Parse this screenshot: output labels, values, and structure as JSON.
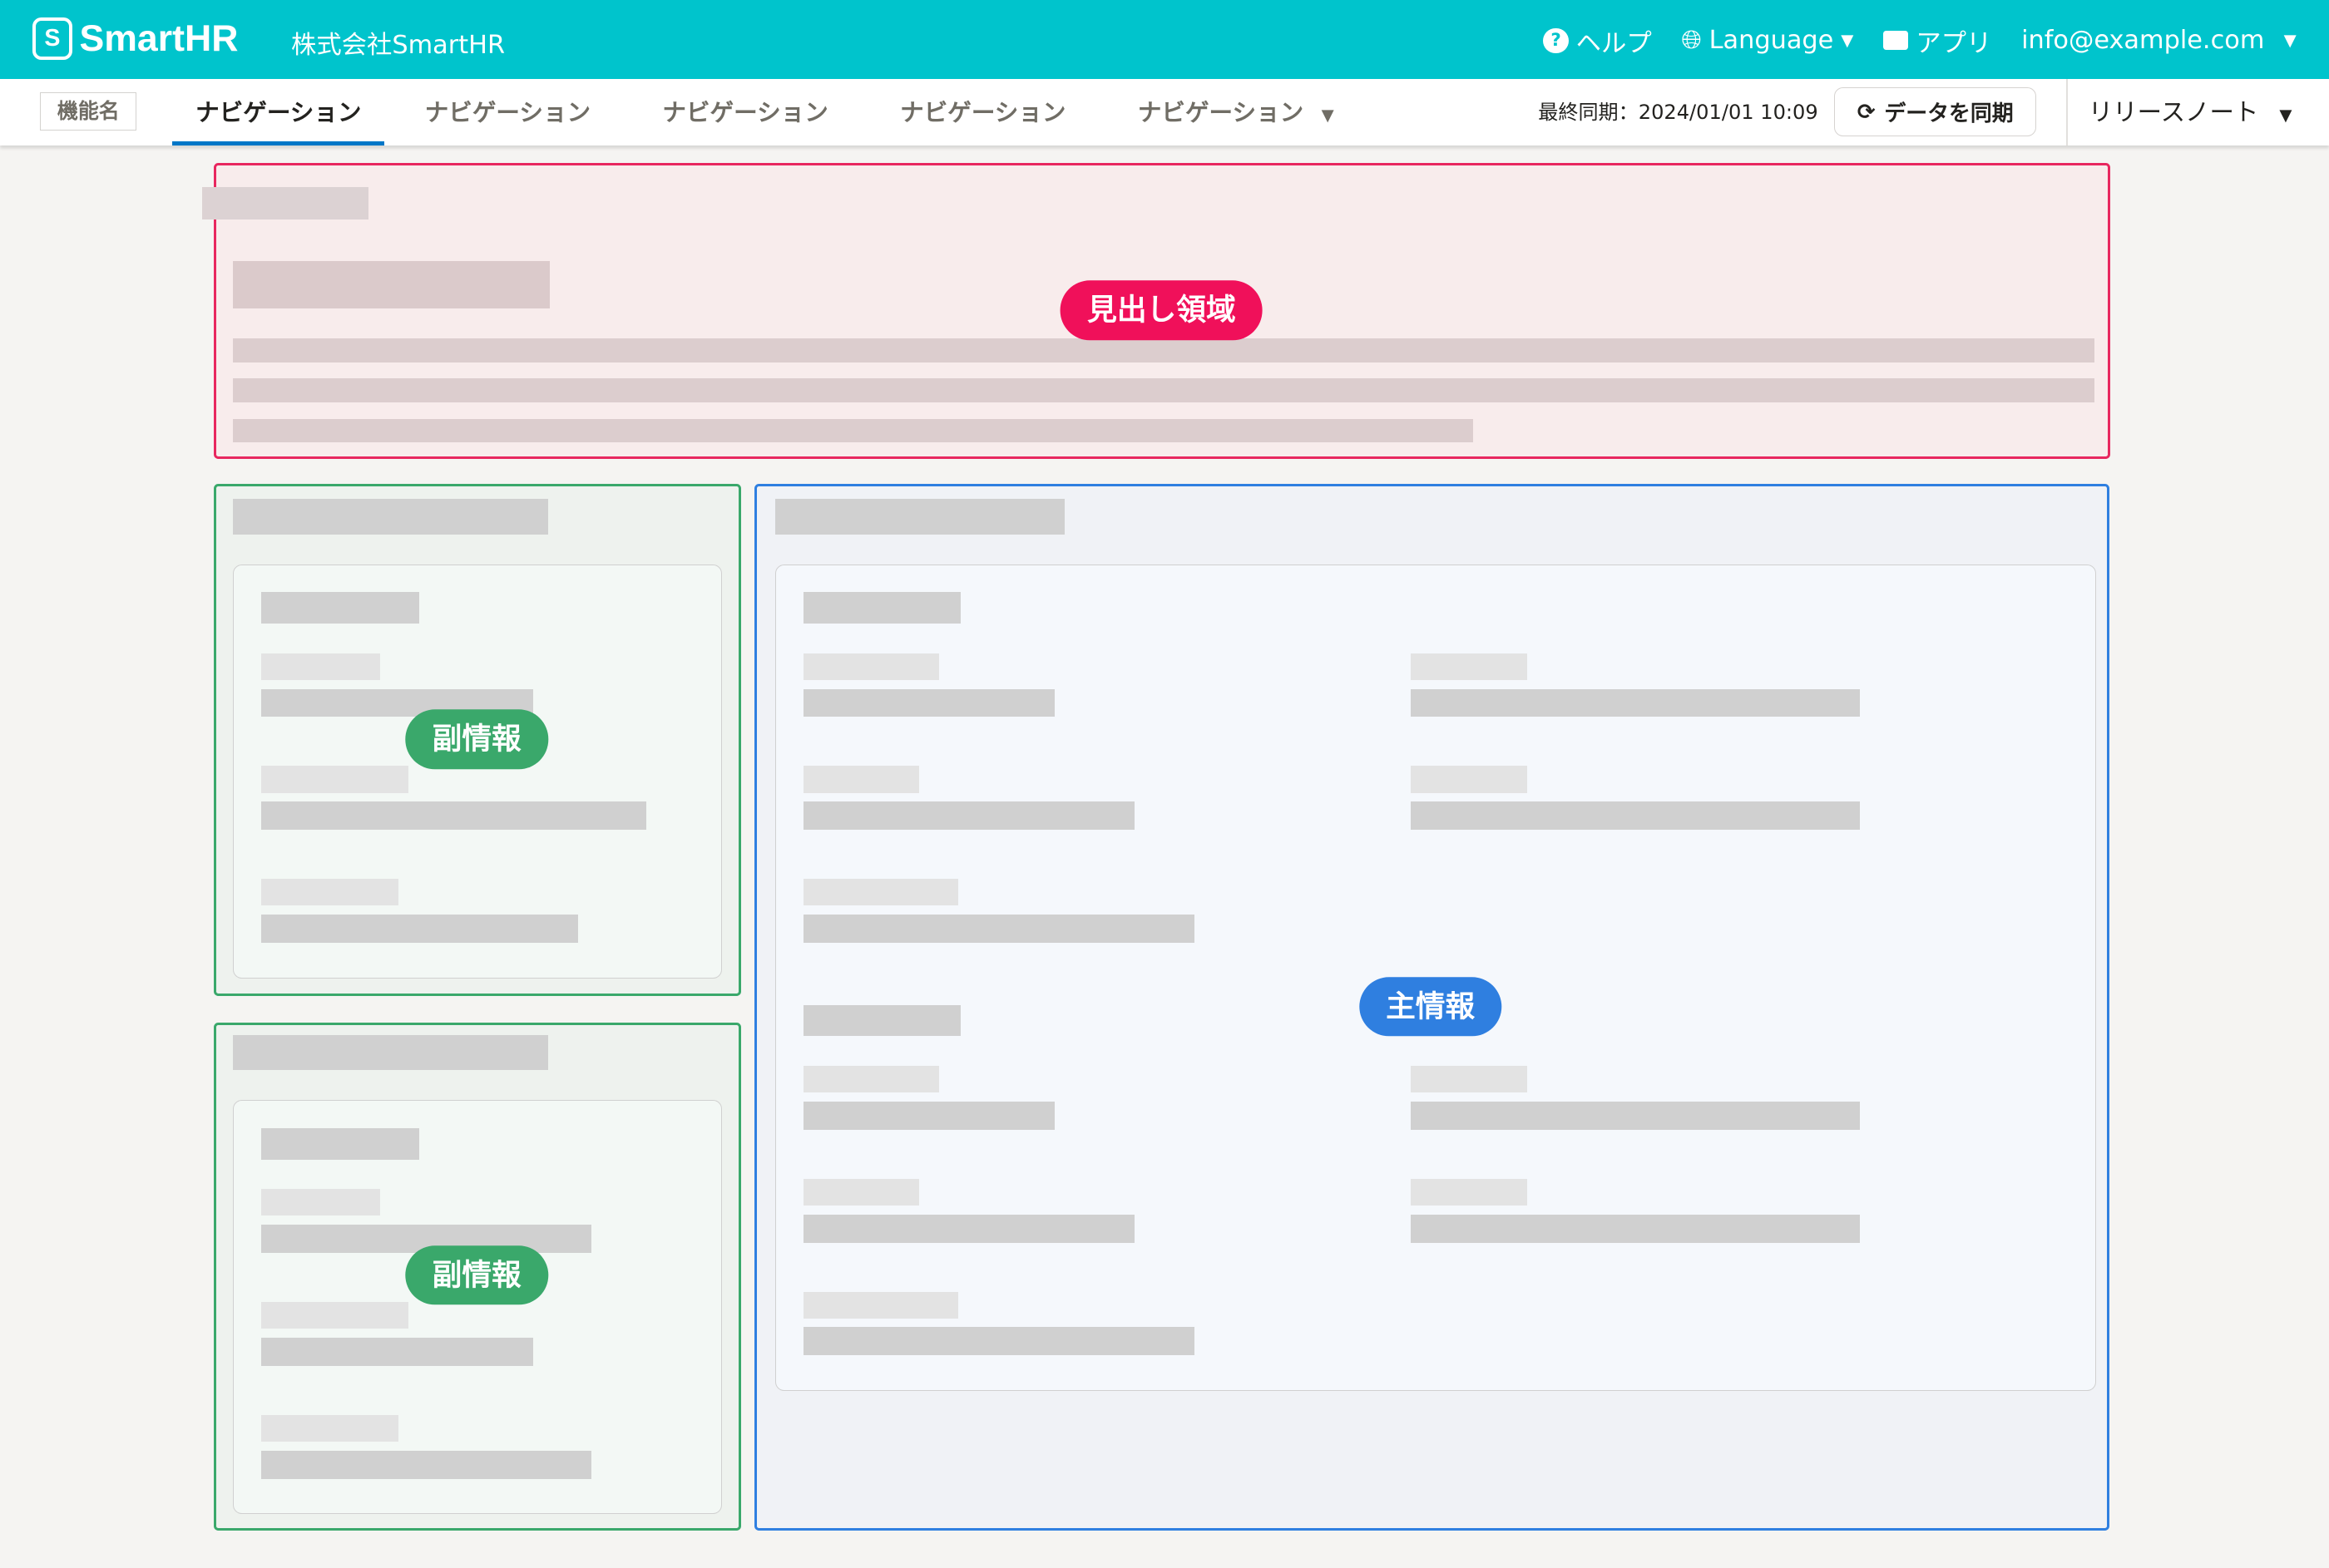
{
  "header": {
    "logo": "SmartHR",
    "company": "株式会社SmartHR",
    "help": "ヘルプ",
    "language": "Language",
    "apps": "アプリ",
    "user": "info@example.com",
    "brand_color": "#00c4cc"
  },
  "nav": {
    "feature_name": "機能名",
    "tabs": [
      {
        "label": "ナビゲーション",
        "active": true
      },
      {
        "label": "ナビゲーション"
      },
      {
        "label": "ナビゲーション"
      },
      {
        "label": "ナビゲーション"
      },
      {
        "label": "ナビゲーション",
        "dropdown": true
      }
    ],
    "last_sync": "最終同期：2024/01/01 10:09",
    "sync_button": "データを同期",
    "release_notes": "リリースノート"
  },
  "regions": {
    "heading": {
      "label": "見出し領域",
      "color": "#f0105a"
    },
    "sub1": {
      "label": "副情報",
      "color": "#3aa86b"
    },
    "sub2": {
      "label": "副情報",
      "color": "#3aa86b"
    },
    "main": {
      "label": "主情報",
      "color": "#2f7fe0"
    }
  },
  "icons": {
    "help": "question-circle-icon",
    "language": "globe-icon",
    "apps": "toolbox-icon",
    "sync": "refresh-icon",
    "dropdown": "caret-down-icon"
  }
}
